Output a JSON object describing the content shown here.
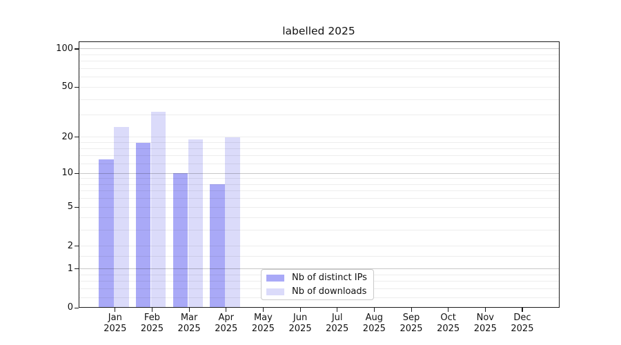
{
  "title": "labelled 2025",
  "chart_data": {
    "type": "bar",
    "title": "labelled 2025",
    "x_categories": [
      "Jan",
      "Feb",
      "Mar",
      "Apr",
      "May",
      "Jun",
      "Jul",
      "Aug",
      "Sep",
      "Oct",
      "Nov",
      "Dec"
    ],
    "x_year_suffix": "2025",
    "series": [
      {
        "name": "Nb of distinct IPs",
        "color": "#a9a9f7",
        "values": [
          13,
          18,
          10,
          8,
          null,
          null,
          null,
          null,
          null,
          null,
          null,
          null
        ]
      },
      {
        "name": "Nb of downloads",
        "color": "#dbdbfa",
        "values": [
          24,
          32,
          19,
          20,
          null,
          null,
          null,
          null,
          null,
          null,
          null,
          null
        ]
      }
    ],
    "y_scale": "log1p",
    "y_ticks": [
      0,
      1,
      2,
      5,
      10,
      20,
      50,
      100
    ],
    "y_decade_gridlines": [
      1,
      10,
      100
    ],
    "y_minor_gridlines": [
      0.2,
      0.4,
      0.6,
      0.8,
      1.5,
      3,
      4,
      6,
      7,
      8,
      9,
      12,
      14,
      16,
      18,
      30,
      40,
      60,
      70,
      80,
      90
    ],
    "ylim": [
      0,
      114.4
    ],
    "grid": true,
    "legend_position": "lower-center"
  },
  "legend": {
    "items": [
      {
        "label": "Nb of distinct IPs",
        "color": "#a9a9f7"
      },
      {
        "label": "Nb of downloads",
        "color": "#dbdbfa"
      }
    ]
  },
  "colors": {
    "grid_minor": "rgba(0,0,0,0.07)",
    "grid_major": "rgba(0,0,0,0.22)",
    "axis": "#1a1a1a",
    "text": "#111111",
    "background": "#ffffff"
  }
}
